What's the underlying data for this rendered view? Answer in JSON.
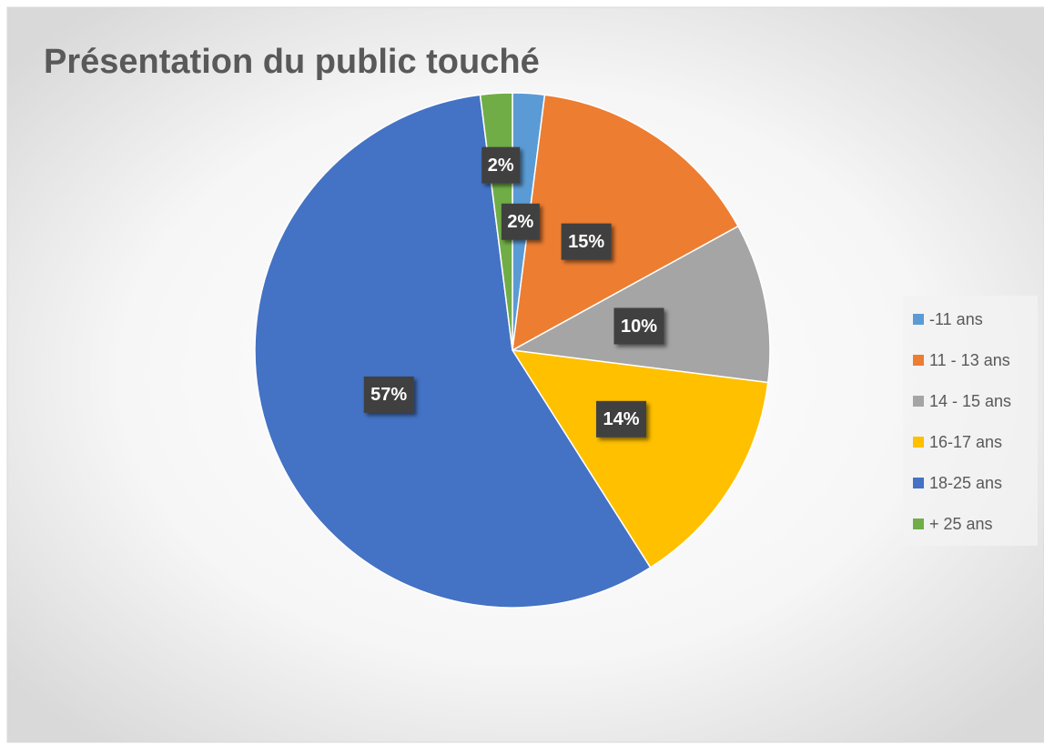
{
  "chart_data": {
    "type": "pie",
    "title": "Présentation du public touché",
    "categories": [
      "-11 ans",
      "11 - 13 ans",
      "14 - 15 ans",
      "16-17 ans",
      "18-25 ans",
      "+ 25 ans"
    ],
    "values": [
      2,
      15,
      10,
      14,
      57,
      2
    ],
    "value_labels": [
      "2%",
      "15%",
      "10%",
      "14%",
      "57%",
      "2%"
    ],
    "colors": [
      "#5b9bd5",
      "#ed7d31",
      "#a5a5a5",
      "#ffc000",
      "#4472c4",
      "#70ad47"
    ],
    "legend": "right"
  }
}
